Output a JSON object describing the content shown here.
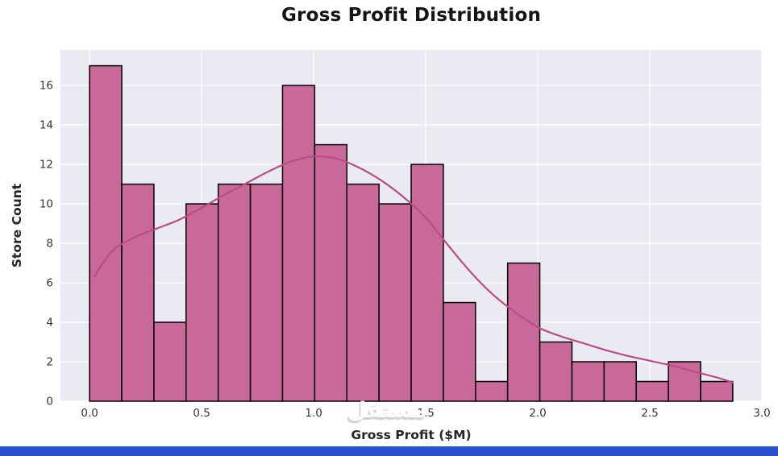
{
  "title": "Gross Profit Distribution",
  "watermark": {
    "text": "مستقل"
  },
  "footer": {
    "color": "#2a52cc"
  },
  "chart_data": {
    "type": "bar",
    "subtype": "histogram_with_kde",
    "title": "Gross Profit Distribution",
    "xlabel": "Gross Profit ($M)",
    "ylabel": "Store Count",
    "bins": {
      "start": 0.0,
      "width": 0.1435
    },
    "counts": [
      17,
      11,
      4,
      10,
      11,
      11,
      16,
      13,
      11,
      10,
      12,
      5,
      1,
      7,
      3,
      2,
      2,
      1,
      2,
      1
    ],
    "kde": {
      "x": [
        0.02,
        0.1,
        0.2,
        0.3,
        0.4,
        0.5,
        0.6,
        0.7,
        0.8,
        0.9,
        1.0,
        1.1,
        1.2,
        1.3,
        1.4,
        1.5,
        1.6,
        1.7,
        1.8,
        1.9,
        2.0,
        2.1,
        2.2,
        2.3,
        2.4,
        2.5,
        2.6,
        2.7,
        2.8,
        2.87
      ],
      "y": [
        6.3,
        7.6,
        8.3,
        8.75,
        9.2,
        9.8,
        10.45,
        11.05,
        11.65,
        12.15,
        12.4,
        12.3,
        11.85,
        11.2,
        10.35,
        9.3,
        7.9,
        6.55,
        5.4,
        4.5,
        3.75,
        3.3,
        2.95,
        2.6,
        2.3,
        2.05,
        1.8,
        1.5,
        1.2,
        0.95
      ]
    },
    "xticks": [
      0.0,
      0.5,
      1.0,
      1.5,
      2.0,
      2.5,
      3.0
    ],
    "xtick_labels": [
      "0.0",
      "0.5",
      "1.0",
      "1.5",
      "2.0",
      "2.5",
      "3.0"
    ],
    "yticks": [
      0,
      2,
      4,
      6,
      8,
      10,
      12,
      14,
      16
    ],
    "ytick_labels": [
      "0",
      "2",
      "4",
      "6",
      "8",
      "10",
      "12",
      "14",
      "16"
    ],
    "xlim": [
      -0.13,
      3.0
    ],
    "ylim": [
      0,
      17.8
    ],
    "grid": true,
    "legend": false,
    "colors": {
      "bar_fill": "#c8699a",
      "bar_edge": "#000000",
      "kde_line": "#bc4c87",
      "plot_bg": "#eaeaf2",
      "grid": "#ffffff",
      "tick_text": "#333333",
      "label_text": "#262626",
      "title_text": "#151515"
    }
  }
}
